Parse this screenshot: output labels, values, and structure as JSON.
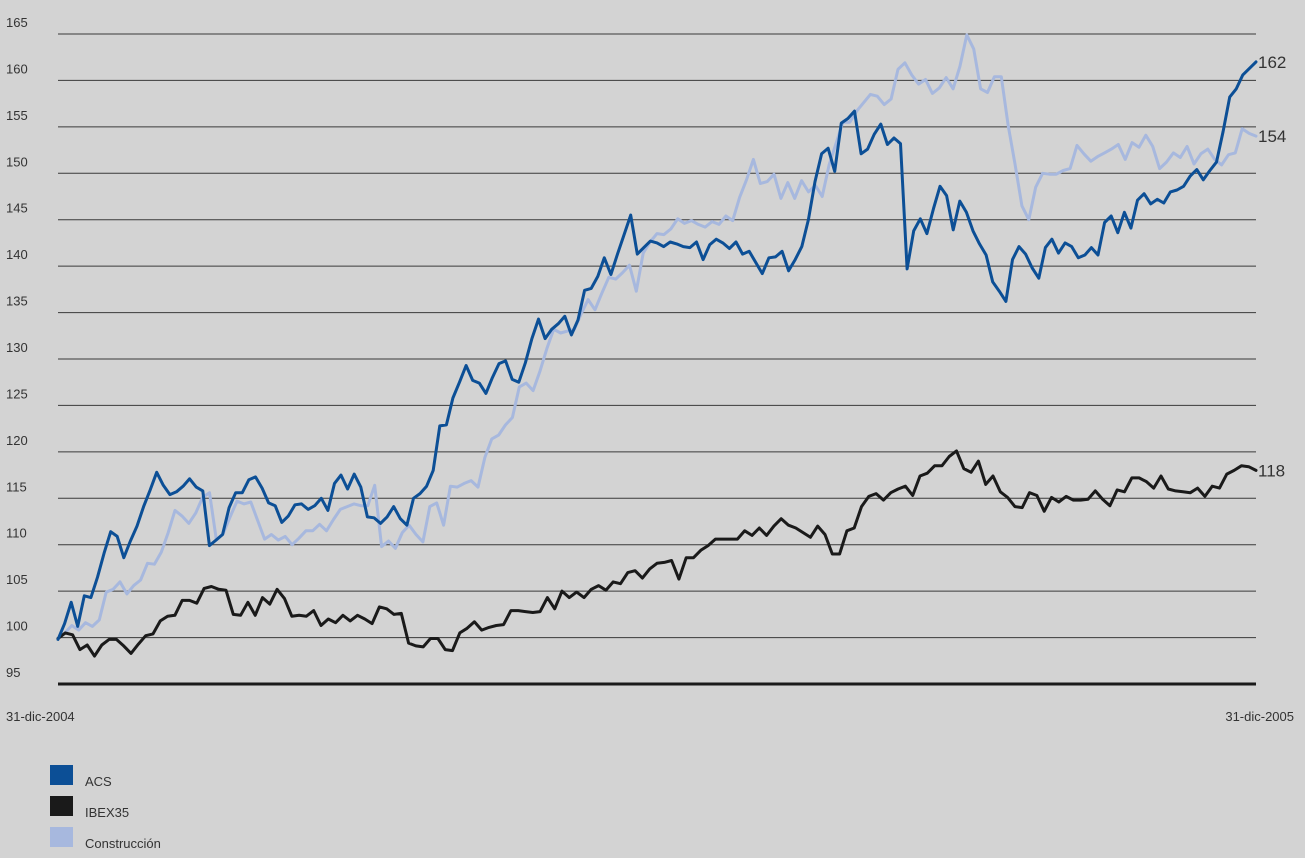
{
  "chart_data": {
    "type": "line",
    "x_start_label": "31-dic-2004",
    "x_end_label": "31-dic-2005",
    "ylim": [
      95,
      165
    ],
    "y_ticks": [
      95,
      100,
      105,
      110,
      115,
      120,
      125,
      130,
      135,
      140,
      145,
      150,
      155,
      160,
      165
    ],
    "grid": true,
    "legend_position": "bottom-left",
    "series": [
      {
        "name": "ACS",
        "color": "#0c4f96",
        "end_label": "162",
        "values": [
          99.8,
          101.5,
          103.8,
          101.2,
          104.5,
          104.3,
          106.5,
          109.1,
          111.4,
          110.9,
          108.6,
          110.4,
          112.0,
          114.1,
          115.9,
          117.8,
          116.4,
          115.4,
          115.7,
          116.3,
          117.1,
          116.2,
          115.8,
          109.9,
          110.5,
          111.1,
          114.0,
          115.6,
          115.6,
          117.0,
          117.3,
          116.1,
          114.5,
          114.2,
          112.4,
          113.1,
          114.3,
          114.4,
          113.8,
          114.2,
          115.0,
          113.7,
          116.6,
          117.5,
          116.0,
          117.6,
          116.2,
          113.0,
          112.9,
          112.3,
          113.0,
          114.1,
          112.8,
          112.1,
          115.0,
          115.5,
          116.3,
          118.0,
          122.8,
          122.9,
          125.8,
          127.5,
          129.3,
          127.7,
          127.4,
          126.3,
          128.0,
          129.5,
          129.8,
          127.8,
          127.5,
          129.6,
          132.2,
          134.3,
          132.2,
          133.2,
          133.8,
          134.6,
          132.6,
          134.2,
          137.4,
          137.6,
          138.9,
          140.9,
          139.1,
          141.3,
          143.4,
          145.5,
          141.3,
          142.0,
          142.7,
          142.5,
          142.1,
          142.6,
          142.4,
          142.1,
          142.0,
          142.6,
          140.7,
          142.3,
          142.9,
          142.5,
          141.9,
          142.6,
          141.3,
          141.6,
          140.4,
          139.2,
          140.9,
          141.0,
          141.6,
          139.5,
          140.7,
          142.1,
          145.0,
          149.1,
          152.1,
          152.7,
          150.2,
          155.4,
          155.9,
          156.7,
          152.1,
          152.6,
          154.2,
          155.3,
          153.1,
          153.8,
          153.2,
          139.7,
          143.8,
          145.1,
          143.5,
          146.2,
          148.6,
          147.6,
          143.9,
          147.0,
          145.8,
          143.8,
          142.4,
          141.2,
          138.3,
          137.3,
          136.2,
          140.7,
          142.1,
          141.3,
          139.8,
          138.7,
          142.0,
          142.9,
          141.4,
          142.5,
          142.1,
          140.9,
          141.2,
          142.0,
          141.2,
          144.7,
          145.4,
          143.6,
          145.8,
          144.1,
          147.1,
          147.8,
          146.7,
          147.2,
          146.8,
          148.0,
          148.2,
          148.6,
          149.7,
          150.4,
          149.3,
          150.3,
          151.2,
          154.5,
          158.2,
          159.1,
          160.6,
          161.3,
          162.0
        ]
      },
      {
        "name": "IBEX35",
        "color": "#1a1a1a",
        "end_label": "118",
        "values": [
          99.9,
          100.5,
          100.3,
          98.7,
          99.2,
          98.0,
          99.2,
          99.8,
          99.8,
          99.1,
          98.3,
          99.3,
          100.2,
          100.4,
          101.8,
          102.3,
          102.4,
          104.0,
          104.0,
          103.7,
          105.3,
          105.5,
          105.2,
          105.1,
          102.5,
          102.4,
          103.8,
          102.4,
          104.3,
          103.6,
          105.2,
          104.2,
          102.3,
          102.4,
          102.3,
          102.9,
          101.3,
          102.0,
          101.6,
          102.4,
          101.8,
          102.4,
          102.0,
          101.5,
          103.3,
          103.1,
          102.5,
          102.6,
          99.4,
          99.1,
          99.0,
          99.9,
          99.9,
          98.7,
          98.6,
          100.5,
          101.0,
          101.7,
          100.8,
          101.1,
          101.3,
          101.4,
          102.9,
          102.9,
          102.8,
          102.7,
          102.8,
          104.3,
          103.1,
          105.0,
          104.3,
          104.9,
          104.3,
          105.2,
          105.6,
          105.1,
          106.0,
          105.8,
          107.0,
          107.2,
          106.4,
          107.4,
          108.0,
          108.1,
          108.3,
          106.3,
          108.6,
          108.6,
          109.4,
          109.9,
          110.6,
          110.6,
          110.6,
          110.6,
          111.5,
          111.0,
          111.8,
          111.0,
          112.0,
          112.8,
          112.1,
          111.8,
          111.3,
          110.8,
          112.0,
          111.1,
          109.0,
          109.0,
          111.5,
          111.8,
          114.1,
          115.2,
          115.5,
          114.8,
          115.6,
          116.0,
          116.3,
          115.3,
          117.4,
          117.7,
          118.5,
          118.5,
          119.5,
          120.1,
          118.2,
          117.8,
          119.0,
          116.5,
          117.4,
          115.7,
          115.1,
          114.1,
          114.0,
          115.6,
          115.3,
          113.6,
          115.1,
          114.6,
          115.2,
          114.8,
          114.8,
          114.9,
          115.8,
          114.9,
          114.2,
          115.9,
          115.7,
          117.2,
          117.2,
          116.8,
          116.1,
          117.4,
          116.0,
          115.8,
          115.7,
          115.6,
          116.1,
          115.2,
          116.3,
          116.1,
          117.6,
          118.0,
          118.5,
          118.4,
          118.0
        ]
      },
      {
        "name": "Construcción",
        "color": "#a7b8de",
        "end_label": "154",
        "values": [
          99.9,
          100.5,
          101.3,
          100.8,
          101.6,
          101.2,
          101.9,
          104.9,
          105.2,
          106.0,
          104.7,
          105.6,
          106.2,
          108.0,
          107.9,
          109.2,
          111.3,
          113.7,
          113.1,
          112.3,
          113.4,
          115.1,
          115.6,
          110.5,
          111.2,
          113.0,
          114.7,
          114.4,
          114.6,
          112.6,
          110.6,
          111.1,
          110.5,
          110.9,
          110.0,
          110.7,
          111.5,
          111.5,
          112.2,
          111.5,
          112.7,
          113.8,
          114.1,
          114.4,
          114.2,
          114.2,
          116.4,
          109.8,
          110.4,
          109.6,
          111.3,
          112.1,
          111.1,
          110.3,
          114.1,
          114.5,
          112.1,
          116.3,
          116.2,
          116.6,
          116.9,
          116.2,
          119.4,
          121.4,
          121.8,
          122.9,
          123.7,
          127.0,
          127.4,
          126.6,
          128.7,
          131.1,
          133.2,
          132.8,
          133.0,
          133.2,
          134.9,
          136.4,
          135.3,
          137.1,
          138.8,
          138.6,
          139.3,
          140.1,
          137.3,
          141.4,
          142.6,
          143.5,
          143.4,
          144.0,
          145.1,
          144.6,
          144.9,
          144.5,
          144.2,
          144.8,
          144.5,
          145.4,
          144.9,
          147.4,
          149.3,
          151.5,
          148.9,
          149.1,
          149.9,
          147.3,
          149.0,
          147.3,
          149.2,
          148.0,
          148.7,
          147.5,
          150.9,
          153.2,
          155.5,
          155.5,
          156.7,
          157.6,
          158.5,
          158.3,
          157.4,
          158.0,
          161.2,
          161.9,
          160.6,
          159.6,
          160.1,
          158.6,
          159.2,
          160.3,
          159.1,
          161.5,
          164.9,
          163.4,
          159.1,
          158.7,
          160.4,
          160.4,
          155.2,
          151.0,
          146.5,
          145.0,
          148.5,
          150.0,
          149.9,
          149.9,
          150.3,
          150.5,
          153.0,
          152.1,
          151.3,
          151.8,
          152.2,
          152.6,
          153.1,
          151.5,
          153.3,
          152.8,
          154.1,
          152.9,
          150.5,
          151.2,
          152.2,
          151.7,
          152.9,
          151.0,
          152.1,
          152.6,
          151.5,
          150.9,
          152.0,
          152.2,
          154.8,
          154.3,
          154.0
        ]
      }
    ]
  }
}
